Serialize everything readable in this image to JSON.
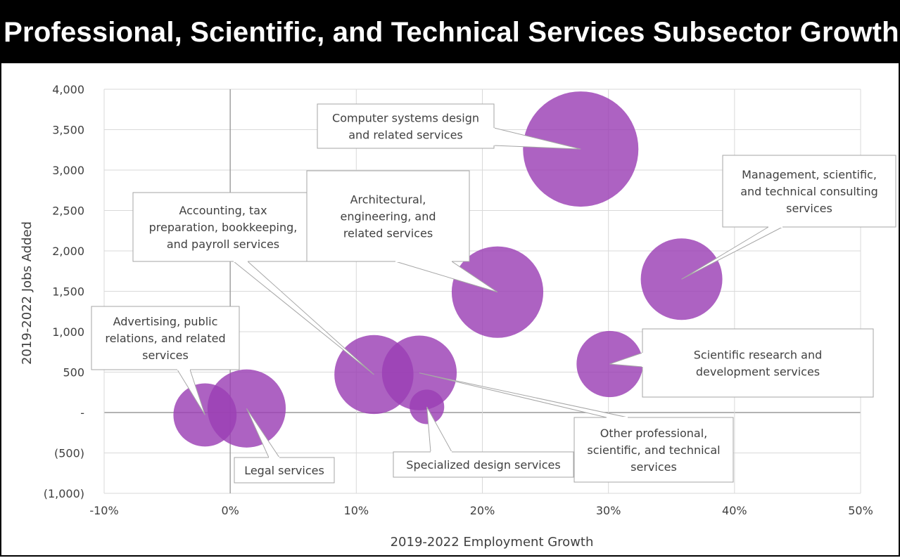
{
  "chart_data": {
    "type": "bubble",
    "title": "Professional, Scientific, and Technical Services Subsector Growth",
    "xlabel": "2019-2022 Employment Growth",
    "ylabel": "2019-2022 Jobs Added",
    "xlim": [
      -0.1,
      0.5
    ],
    "ylim": [
      -1000,
      4000
    ],
    "x_ticks": [
      -0.1,
      0.0,
      0.1,
      0.2,
      0.3,
      0.4,
      0.5
    ],
    "x_tick_labels": [
      "-10%",
      "0%",
      "10%",
      "20%",
      "30%",
      "40%",
      "50%"
    ],
    "y_ticks": [
      4000,
      3500,
      3000,
      2500,
      2000,
      1500,
      1000,
      500,
      0,
      -500,
      -1000
    ],
    "y_tick_labels": [
      "4,000",
      "3,500",
      "3,000",
      "2,500",
      "2,000",
      "1,500",
      "1,000",
      "500",
      "-",
      "(500)",
      "(1,000)"
    ],
    "grid": true,
    "bubble_color": "#9B3FB5",
    "points": [
      {
        "label": [
          "Advertising, public",
          "relations, and related",
          "services"
        ],
        "x": -0.02,
        "y": -30,
        "size": 0.3
      },
      {
        "label": [
          "Legal services"
        ],
        "x": 0.013,
        "y": 50,
        "size": 0.46
      },
      {
        "label": [
          "Accounting, tax",
          "preparation, bookkeeping,",
          "and payroll services"
        ],
        "x": 0.114,
        "y": 470,
        "size": 0.47
      },
      {
        "label": [
          "Other professional,",
          "scientific, and technical",
          "services"
        ],
        "x": 0.15,
        "y": 490,
        "size": 0.42
      },
      {
        "label": [
          "Specialized design services"
        ],
        "x": 0.156,
        "y": 70,
        "size": 0.09
      },
      {
        "label": [
          "Architectural,",
          "engineering, and",
          "related services"
        ],
        "x": 0.212,
        "y": 1490,
        "size": 0.63
      },
      {
        "label": [
          "Computer systems design",
          "and related services"
        ],
        "x": 0.278,
        "y": 3260,
        "size": 1.0
      },
      {
        "label": [
          "Scientific research and",
          "development services"
        ],
        "x": 0.301,
        "y": 600,
        "size": 0.33
      },
      {
        "label": [
          "Management, scientific,",
          "and technical consulting",
          "services"
        ],
        "x": 0.358,
        "y": 1650,
        "size": 0.5
      }
    ]
  }
}
